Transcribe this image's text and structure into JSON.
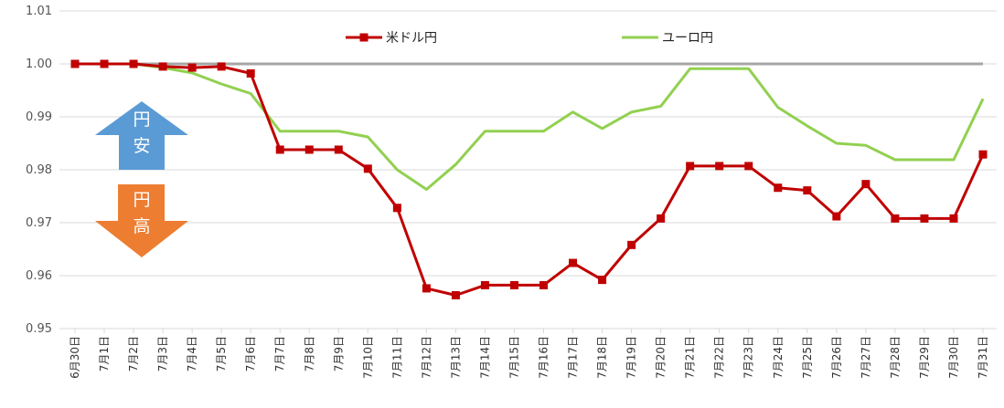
{
  "chart_data": {
    "type": "line",
    "title": "",
    "xlabel": "",
    "ylabel": "",
    "ylim": [
      0.95,
      1.01
    ],
    "y_ticks": [
      "0.95",
      "0.96",
      "0.97",
      "0.98",
      "0.99",
      "1.00",
      "1.01"
    ],
    "grid": "horizontal",
    "legend_position": "top",
    "categories": [
      "6月30日",
      "7月1日",
      "7月2日",
      "7月3日",
      "7月4日",
      "7月5日",
      "7月6日",
      "7月7日",
      "7月8日",
      "7月9日",
      "7月10日",
      "7月11日",
      "7月12日",
      "7月13日",
      "7月14日",
      "7月15日",
      "7月16日",
      "7月17日",
      "7月18日",
      "7月19日",
      "7月20日",
      "7月21日",
      "7月22日",
      "7月23日",
      "7月24日",
      "7月25日",
      "7月26日",
      "7月27日",
      "7月28日",
      "7月29日",
      "7月30日",
      "7月31日"
    ],
    "series": [
      {
        "name": "米ドル円",
        "color": "#c00000",
        "marker": "square",
        "values": [
          1.0,
          1.0,
          1.0,
          0.9995,
          0.9993,
          0.9995,
          0.9982,
          0.9838,
          0.9838,
          0.9838,
          0.9802,
          0.9728,
          0.9576,
          0.9563,
          0.9582,
          0.9582,
          0.9582,
          0.9624,
          0.9592,
          0.9658,
          0.9708,
          0.9807,
          0.9807,
          0.9807,
          0.9766,
          0.9761,
          0.9712,
          0.9773,
          0.9708,
          0.9708,
          0.9708,
          0.9829
        ]
      },
      {
        "name": "ユーロ円",
        "color": "#92d050",
        "marker": "none",
        "values": [
          1.0,
          1.0,
          1.0,
          0.9993,
          0.9983,
          0.9962,
          0.9944,
          0.9873,
          0.9873,
          0.9873,
          0.9862,
          0.98,
          0.9763,
          0.981,
          0.9873,
          0.9873,
          0.9873,
          0.9909,
          0.9878,
          0.9909,
          0.992,
          0.9991,
          0.9991,
          0.9991,
          0.9918,
          0.9883,
          0.985,
          0.9846,
          0.9819,
          0.9819,
          0.9819,
          0.9934
        ]
      }
    ],
    "reference_line": {
      "value": 1.0,
      "color": "#a6a6a6"
    },
    "annotations": {
      "up_arrow": {
        "text": [
          "円",
          "安"
        ],
        "color": "#5b9bd5"
      },
      "down_arrow": {
        "text": [
          "円",
          "高"
        ],
        "color": "#ed7d31"
      }
    }
  }
}
